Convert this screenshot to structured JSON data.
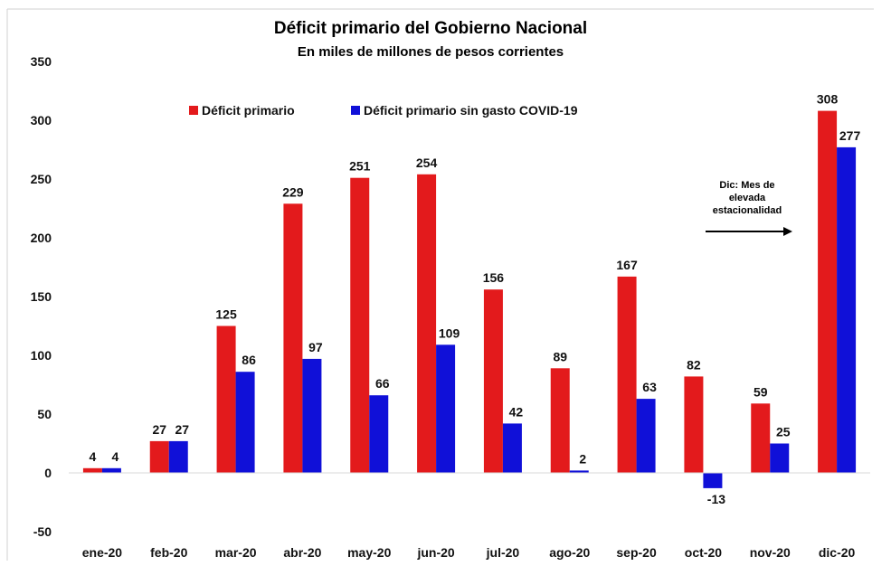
{
  "chart_data": {
    "type": "bar",
    "title": "Déficit primario del Gobierno Nacional",
    "subtitle": "En miles de millones de pesos corrientes",
    "categories": [
      "ene-20",
      "feb-20",
      "mar-20",
      "abr-20",
      "may-20",
      "jun-20",
      "jul-20",
      "ago-20",
      "sep-20",
      "oct-20",
      "nov-20",
      "dic-20"
    ],
    "series": [
      {
        "name": "Déficit primario",
        "color": "#e31a1c",
        "values": [
          4,
          27,
          125,
          229,
          251,
          254,
          156,
          89,
          167,
          82,
          59,
          308
        ]
      },
      {
        "name": "Déficit primario sin gasto COVID-19",
        "color": "#1010d8",
        "values": [
          4,
          27,
          86,
          97,
          66,
          109,
          42,
          2,
          63,
          -13,
          25,
          277
        ]
      }
    ],
    "ylim": [
      -50,
      350
    ],
    "yticks": [
      -50,
      0,
      50,
      100,
      150,
      200,
      250,
      300,
      350
    ],
    "legend_position": "top",
    "grid": false,
    "annotation": {
      "lines": [
        "Dic: Mes de",
        "elevada",
        "estacionalidad"
      ],
      "arrow": "right"
    }
  }
}
